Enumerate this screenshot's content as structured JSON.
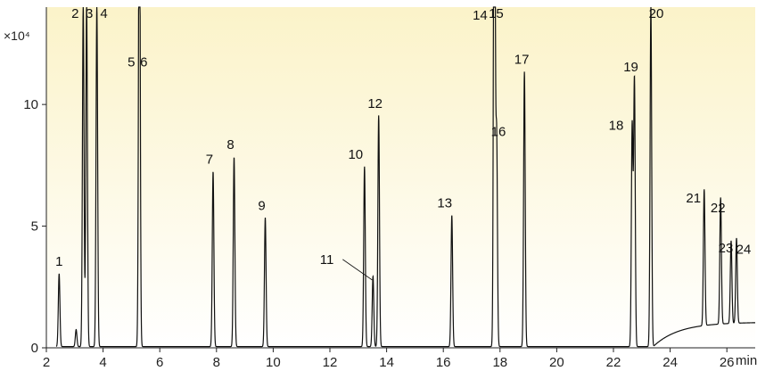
{
  "chart_data": {
    "type": "line",
    "title": "",
    "xlabel": "",
    "ylabel": "",
    "x_unit": "min",
    "y_multiplier": "×10⁴",
    "xlim": [
      2,
      27
    ],
    "ylim": [
      0,
      14
    ],
    "x_ticks": [
      2,
      4,
      6,
      8,
      10,
      12,
      14,
      16,
      18,
      20,
      22,
      24,
      26
    ],
    "y_ticks": [
      0,
      5,
      10
    ],
    "grid": false,
    "legend": "none",
    "background_gradient": [
      "#fbf3c9",
      "#ffffff"
    ],
    "line_color": "#111111",
    "baseline": 0.05,
    "peaks": [
      {
        "label": "1",
        "rt": 2.45,
        "height": 3.0
      },
      {
        "label": "",
        "rt": 3.05,
        "height": 0.7
      },
      {
        "label": "2",
        "rt": 3.3,
        "height": 14.0
      },
      {
        "label": "3",
        "rt": 3.42,
        "height": 14.0
      },
      {
        "label": "4",
        "rt": 3.78,
        "height": 14.0
      },
      {
        "label": "5",
        "rt": 5.28,
        "height": 11.2
      },
      {
        "label": "6",
        "rt": 5.28,
        "height": 11.2
      },
      {
        "label": "7",
        "rt": 7.88,
        "height": 7.2
      },
      {
        "label": "8",
        "rt": 8.62,
        "height": 7.8
      },
      {
        "label": "9",
        "rt": 9.72,
        "height": 5.3
      },
      {
        "label": "10",
        "rt": 13.22,
        "height": 7.4
      },
      {
        "label": "11",
        "rt": 13.52,
        "height": 2.9
      },
      {
        "label": "12",
        "rt": 13.72,
        "height": 9.5
      },
      {
        "label": "13",
        "rt": 16.3,
        "height": 5.4
      },
      {
        "label": "14",
        "rt": 17.8,
        "height": 14.0
      },
      {
        "label": "15",
        "rt": 17.8,
        "height": 14.0
      },
      {
        "label": "16",
        "rt": 17.88,
        "height": 8.7
      },
      {
        "label": "17",
        "rt": 18.86,
        "height": 11.3
      },
      {
        "label": "18",
        "rt": 22.66,
        "height": 9.1
      },
      {
        "label": "19",
        "rt": 22.74,
        "height": 11.0
      },
      {
        "label": "20",
        "rt": 23.32,
        "height": 14.0
      },
      {
        "label": "21",
        "rt": 25.2,
        "height": 5.6
      },
      {
        "label": "22",
        "rt": 25.78,
        "height": 5.2
      },
      {
        "label": "23",
        "rt": 26.15,
        "height": 3.4
      },
      {
        "label": "24",
        "rt": 26.34,
        "height": 3.5
      }
    ]
  }
}
